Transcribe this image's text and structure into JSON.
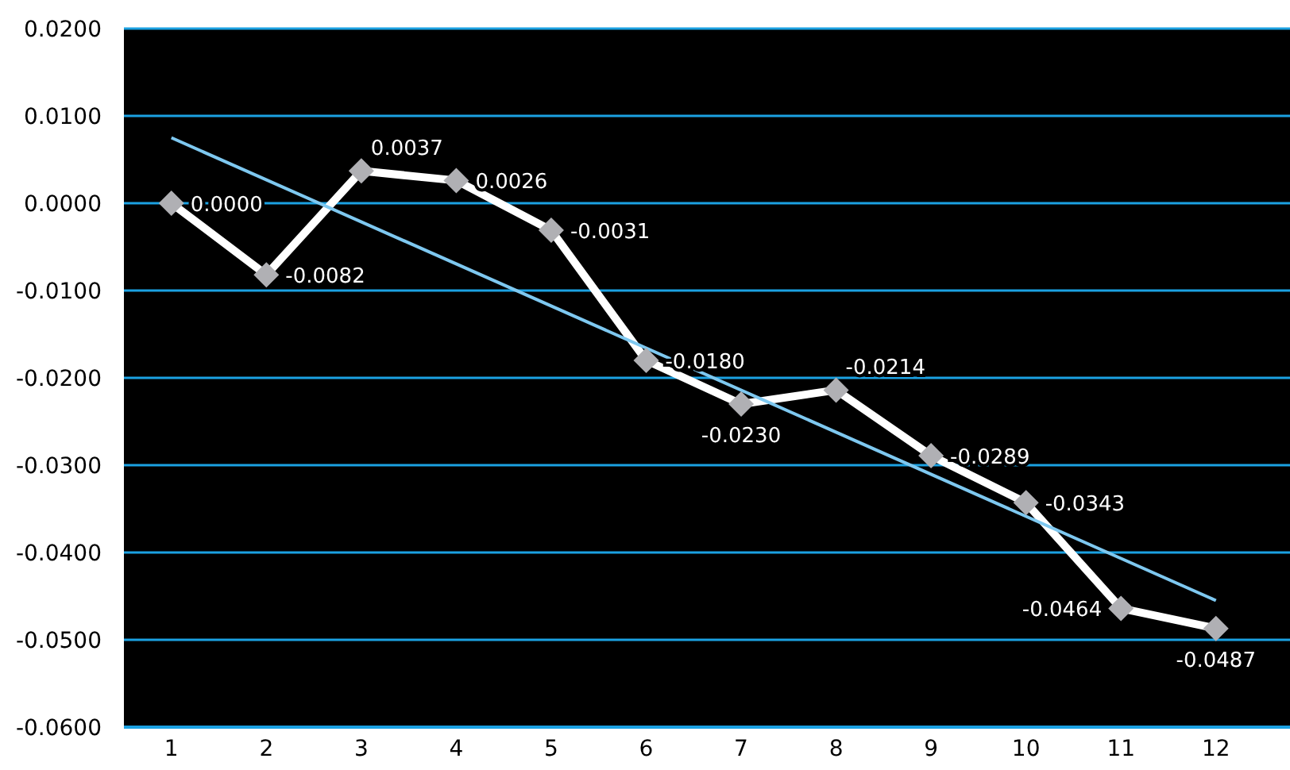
{
  "chart_data": {
    "type": "line",
    "x": [
      1,
      2,
      3,
      4,
      5,
      6,
      7,
      8,
      9,
      10,
      11,
      12
    ],
    "xlim": [
      0.5,
      12.78
    ],
    "xticks": [
      1,
      2,
      3,
      4,
      5,
      6,
      7,
      8,
      9,
      10,
      11,
      12
    ],
    "ylim": [
      -0.06,
      0.02
    ],
    "yticks": [
      {
        "value": -0.06,
        "label": "-0.0600"
      },
      {
        "value": -0.05,
        "label": "-0.0500"
      },
      {
        "value": -0.04,
        "label": "-0.0400"
      },
      {
        "value": -0.03,
        "label": "-0.0300"
      },
      {
        "value": -0.02,
        "label": "-0.0200"
      },
      {
        "value": -0.01,
        "label": "-0.0100"
      },
      {
        "value": 0,
        "label": "0.0000"
      },
      {
        "value": 0.01,
        "label": "0.0100"
      },
      {
        "value": 0.02,
        "label": "0.0200"
      }
    ],
    "grid": "y",
    "marker": "diamond",
    "legend": false,
    "series": [
      {
        "color": "#ffffff",
        "values": [
          0,
          -0.0082,
          0.0037,
          0.0026,
          -0.0031,
          -0.018,
          -0.023,
          -0.0214,
          -0.0289,
          -0.0343,
          -0.0464,
          -0.0487
        ],
        "value_labels": [
          "0.0000",
          "-0.0082",
          "0.0037",
          "0.0026",
          "-0.0031",
          "-0.0180",
          "-0.0230",
          "-0.0214",
          "-0.0289",
          "-0.0343",
          "-0.0464",
          "-0.0487"
        ]
      },
      {
        "color": "#7ec8f0",
        "x": [
          1,
          12
        ],
        "values": [
          0.0075,
          -0.0455
        ],
        "marker": "none"
      }
    ]
  }
}
